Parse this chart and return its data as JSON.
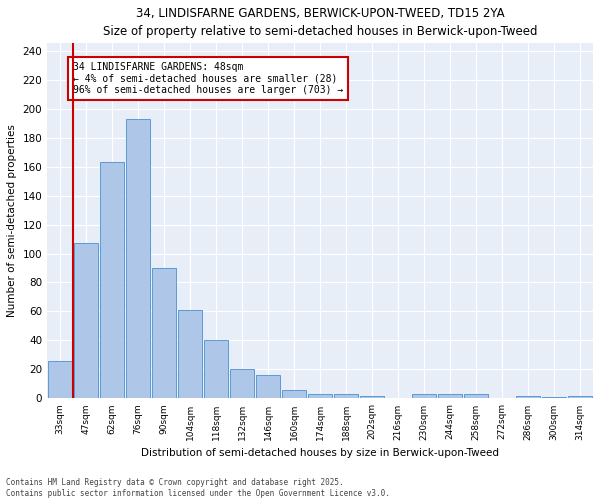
{
  "title": "34, LINDISFARNE GARDENS, BERWICK-UPON-TWEED, TD15 2YA",
  "subtitle": "Size of property relative to semi-detached houses in Berwick-upon-Tweed",
  "xlabel": "Distribution of semi-detached houses by size in Berwick-upon-Tweed",
  "ylabel": "Number of semi-detached properties",
  "categories": [
    "33sqm",
    "47sqm",
    "62sqm",
    "76sqm",
    "90sqm",
    "104sqm",
    "118sqm",
    "132sqm",
    "146sqm",
    "160sqm",
    "174sqm",
    "188sqm",
    "202sqm",
    "216sqm",
    "230sqm",
    "244sqm",
    "258sqm",
    "272sqm",
    "286sqm",
    "300sqm",
    "314sqm"
  ],
  "values": [
    26,
    107,
    163,
    193,
    90,
    61,
    40,
    20,
    16,
    6,
    3,
    3,
    2,
    0,
    3,
    3,
    3,
    0,
    2,
    1,
    2
  ],
  "bar_color": "#aec6e8",
  "bar_edge_color": "#5b9bd5",
  "property_line_x": 0.5,
  "annotation_title": "34 LINDISFARNE GARDENS: 48sqm",
  "annotation_line1": "← 4% of semi-detached houses are smaller (28)",
  "annotation_line2": "96% of semi-detached houses are larger (703) →",
  "annotation_box_color": "#ffffff",
  "annotation_box_edge": "#cc0000",
  "property_line_color": "#cc0000",
  "ylim": [
    0,
    245
  ],
  "yticks": [
    0,
    20,
    40,
    60,
    80,
    100,
    120,
    140,
    160,
    180,
    200,
    220,
    240
  ],
  "footer_line1": "Contains HM Land Registry data © Crown copyright and database right 2025.",
  "footer_line2": "Contains public sector information licensed under the Open Government Licence v3.0.",
  "background_color": "#e8eef8",
  "fig_background": "#ffffff"
}
